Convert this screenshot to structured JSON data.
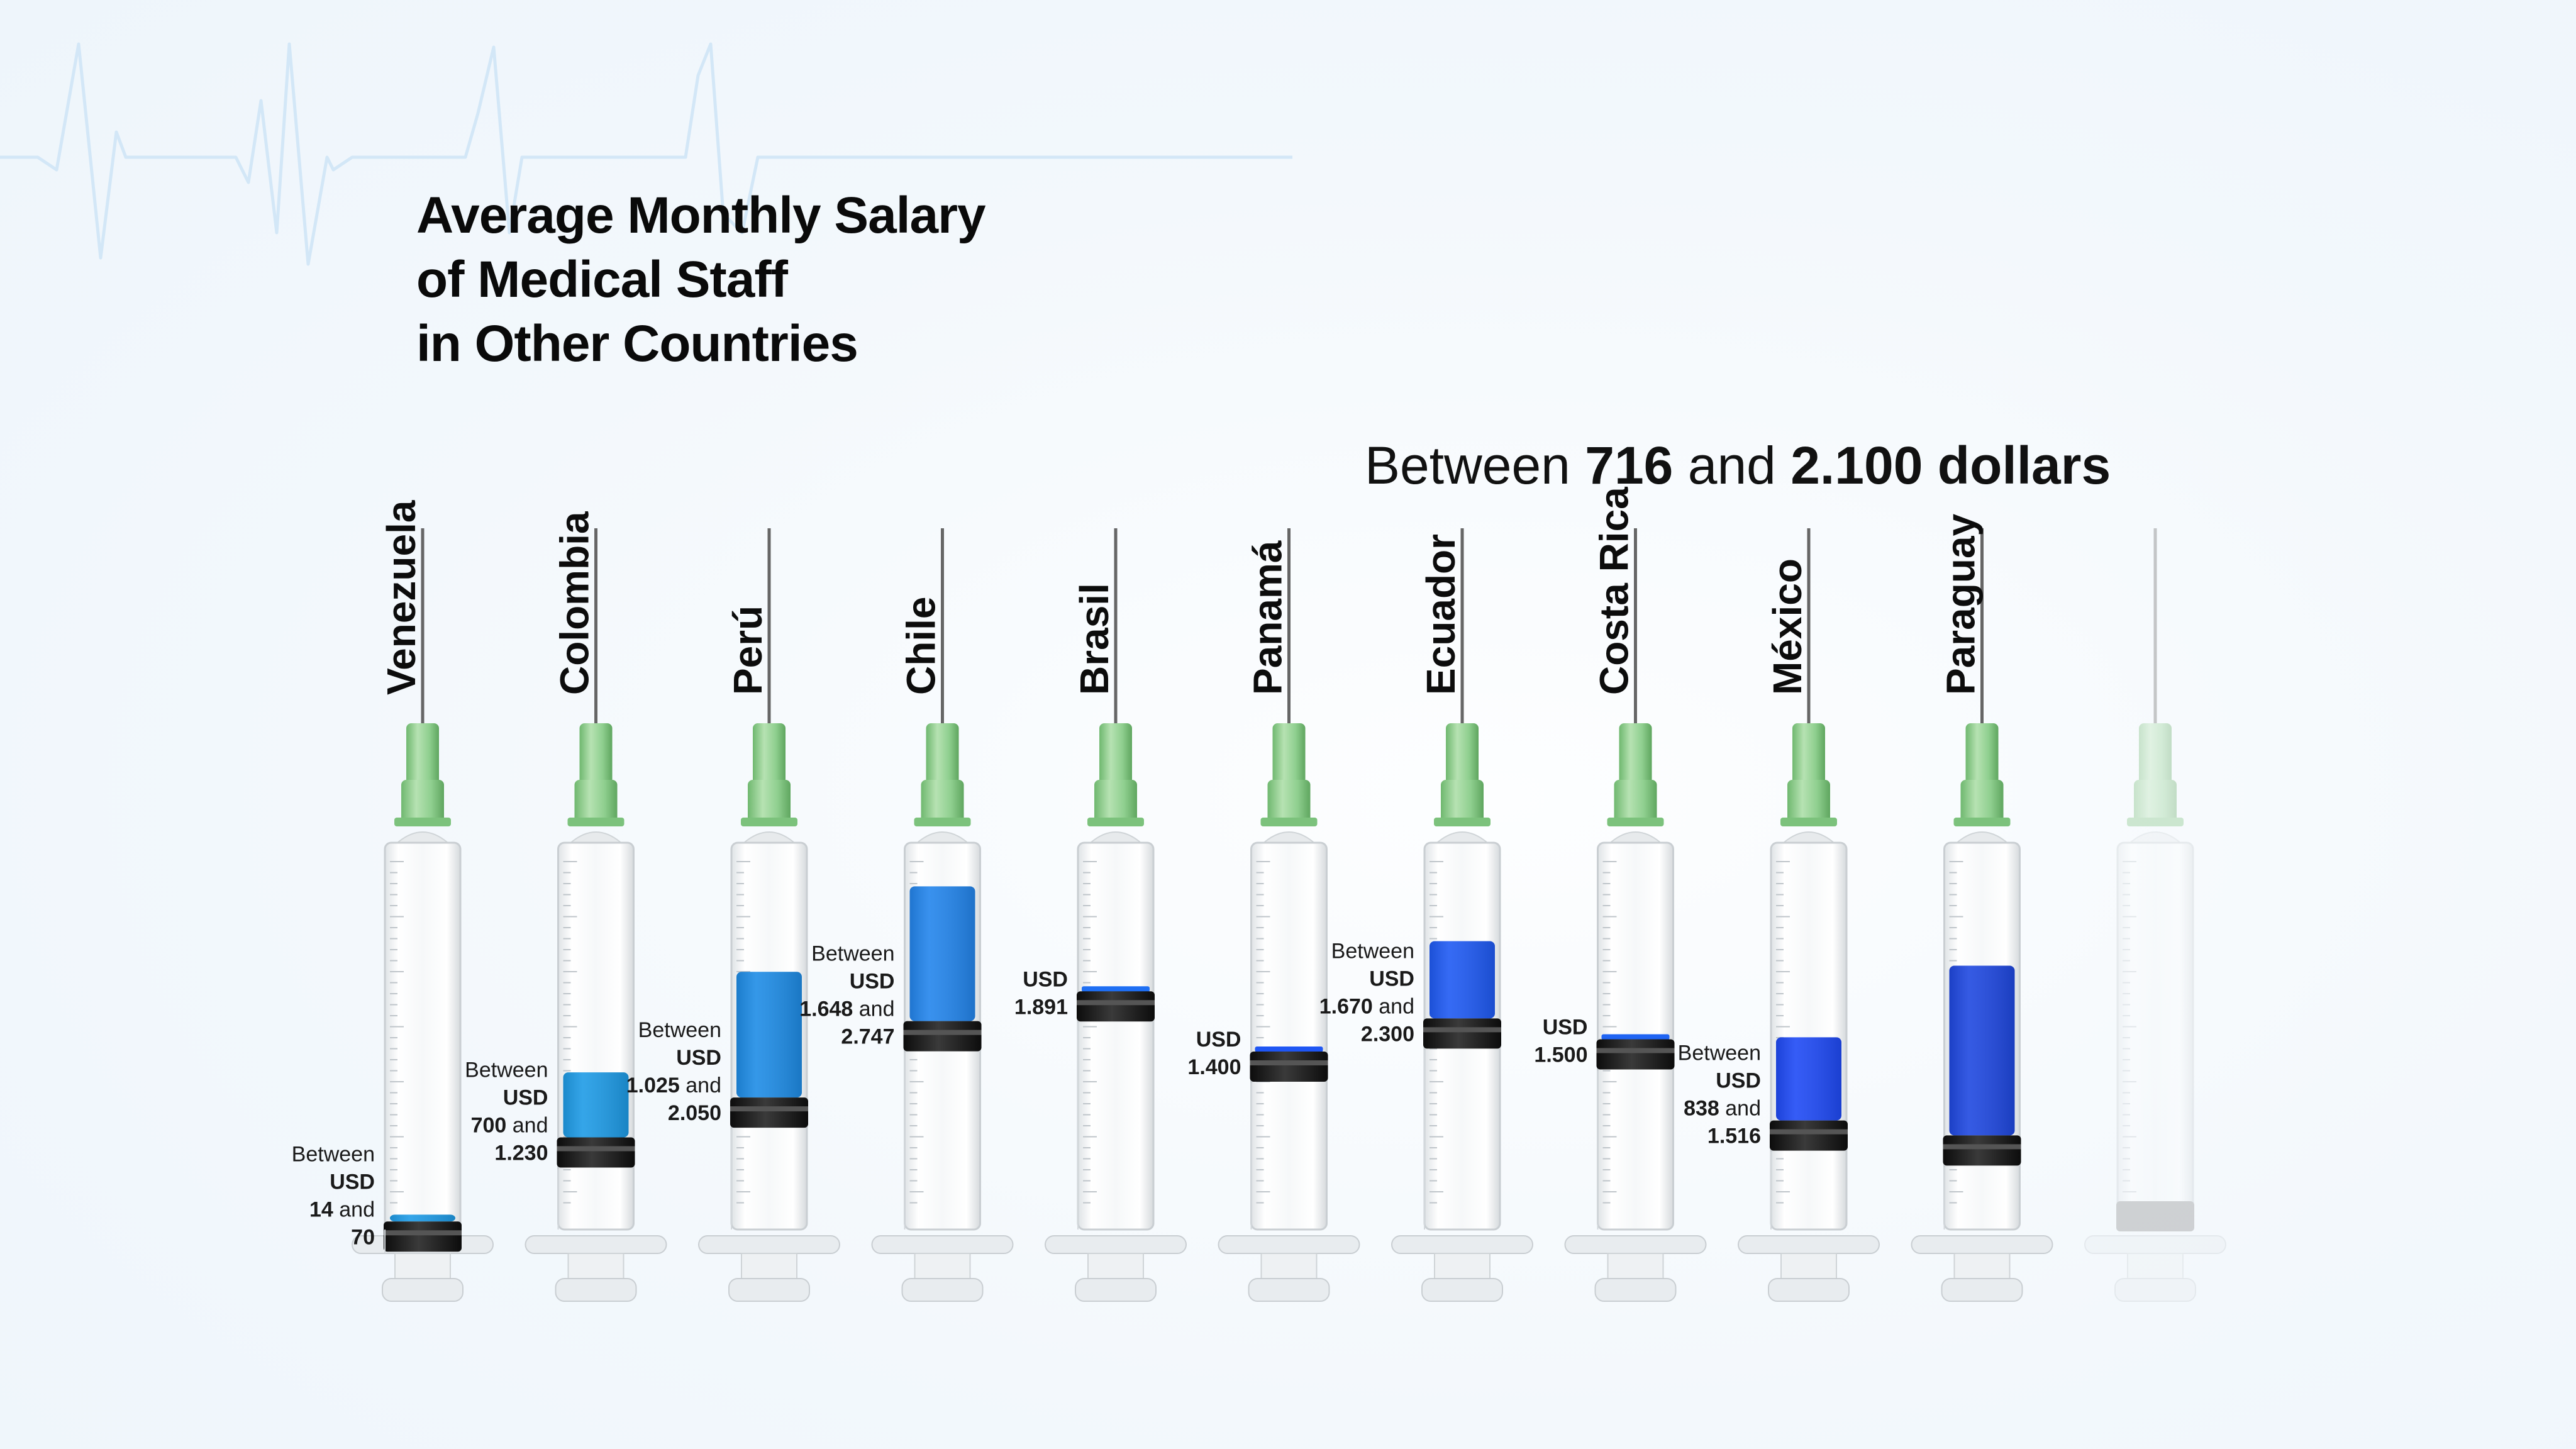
{
  "title_lines": [
    "Average Monthly Salary",
    "of Medical Staff",
    "in Other Countries"
  ],
  "subtitle": {
    "prefix": "Between ",
    "low": "716",
    "middle": " and ",
    "high": "2.100 dollars"
  },
  "colors": {
    "background": "#f3f8fc",
    "needle_hub": "#8fcf8f",
    "plunger": "#1c1c1c",
    "ecg_line": "#d3e7f7",
    "liquid": [
      "#1e9be6",
      "#1e9be6",
      "#1e8ce6",
      "#2385ec",
      "#1f6ff3",
      "#1f56f3",
      "#1f5af3",
      "#1f64f3",
      "#1f4af5",
      "#1f48e0"
    ]
  },
  "chart_data": {
    "type": "bar",
    "title": "Average Monthly Salary of Medical Staff in Other Countries",
    "subtitle": "Between 716 and 2.100 dollars",
    "unit": "USD",
    "categories": [
      "Venezuela",
      "Colombia",
      "Perú",
      "Chile",
      "Brasil",
      "Panamá",
      "Ecuador",
      "Costa Rica",
      "México",
      "Paraguay"
    ],
    "series": [
      {
        "name": "low",
        "values": [
          14,
          700,
          1025,
          1648,
          1891,
          1400,
          1670,
          1500,
          838,
          716
        ]
      },
      {
        "name": "high",
        "values": [
          70,
          1230,
          2050,
          2747,
          1891,
          1400,
          2300,
          1500,
          1516,
          2100
        ]
      }
    ],
    "labels": [
      [
        "Between",
        "USD",
        "14 and",
        "70"
      ],
      [
        "Between",
        "USD",
        "700 and",
        "1.230"
      ],
      [
        "Between",
        "USD",
        "1.025 and",
        "2.050"
      ],
      [
        "Between",
        "USD",
        "1.648 and",
        "2.747"
      ],
      [
        "USD",
        "1.891"
      ],
      [
        "USD",
        "1.400"
      ],
      [
        "Between",
        "USD",
        "1.670 and",
        "2.300"
      ],
      [
        "USD",
        "1.500"
      ],
      [
        "Between",
        "USD",
        "838 and",
        "1.516"
      ],
      []
    ],
    "ylim": [
      0,
      3000
    ]
  }
}
